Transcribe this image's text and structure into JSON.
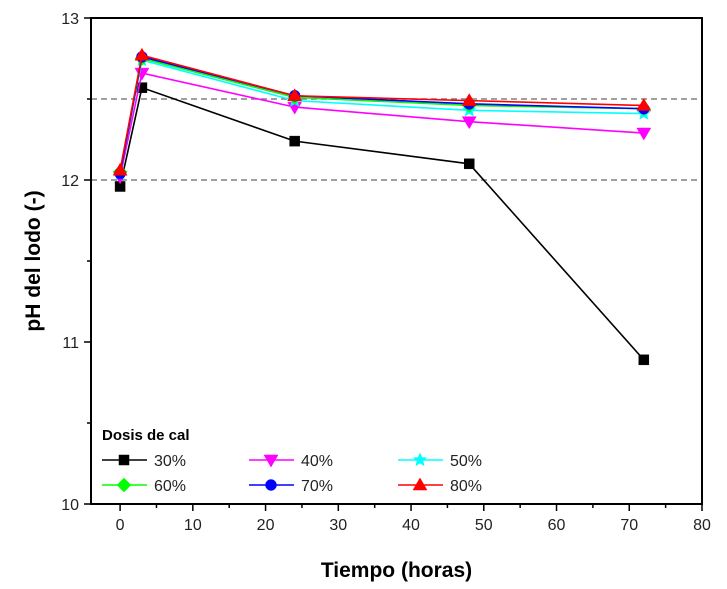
{
  "chart_data": {
    "type": "line",
    "title": "",
    "xlabel": "Tiempo (horas)",
    "ylabel": "pH del lodo (-)",
    "xlim": [
      -4,
      80
    ],
    "ylim": [
      10,
      13
    ],
    "xticks": [
      0,
      10,
      20,
      30,
      40,
      50,
      60,
      70,
      80
    ],
    "xtick_labels": [
      "0",
      "10",
      "20",
      "30",
      "40",
      "50",
      "60",
      "70",
      "80"
    ],
    "yticks": [
      10,
      11,
      12,
      13
    ],
    "ytick_labels": [
      "10",
      "11",
      "12",
      "13"
    ],
    "yminor_ticks": [
      10.5,
      11.5,
      12.5
    ],
    "xminor_ticks": [
      5,
      15,
      25,
      35,
      45,
      55,
      65,
      75
    ],
    "reference_lines": [
      {
        "axis": "y",
        "value": 12.0,
        "style": "dashed",
        "color": "#808080"
      },
      {
        "axis": "y",
        "value": 12.5,
        "style": "dashed",
        "color": "#808080"
      }
    ],
    "grid": false,
    "legend": {
      "title": "Dosis de cal",
      "placement": "bottom-left",
      "columns": 3
    },
    "x": [
      0,
      3,
      24,
      48,
      72
    ],
    "series": [
      {
        "name": "30%",
        "color": "#000000",
        "marker": "square",
        "values": [
          11.96,
          12.57,
          12.24,
          12.1,
          10.89
        ]
      },
      {
        "name": "40%",
        "color": "#ff00ff",
        "marker": "triangle-down",
        "values": [
          12.02,
          12.66,
          12.45,
          12.36,
          12.29
        ]
      },
      {
        "name": "50%",
        "color": "#00ffff",
        "marker": "star",
        "values": [
          12.04,
          12.74,
          12.49,
          12.43,
          12.41
        ]
      },
      {
        "name": "60%",
        "color": "#00ff00",
        "marker": "diamond",
        "values": [
          12.05,
          12.75,
          12.51,
          12.46,
          12.44
        ]
      },
      {
        "name": "70%",
        "color": "#0000ff",
        "marker": "circle",
        "values": [
          12.04,
          12.76,
          12.52,
          12.47,
          12.44
        ]
      },
      {
        "name": "80%",
        "color": "#ff0000",
        "marker": "triangle-up",
        "values": [
          12.06,
          12.77,
          12.52,
          12.49,
          12.46
        ]
      }
    ]
  }
}
